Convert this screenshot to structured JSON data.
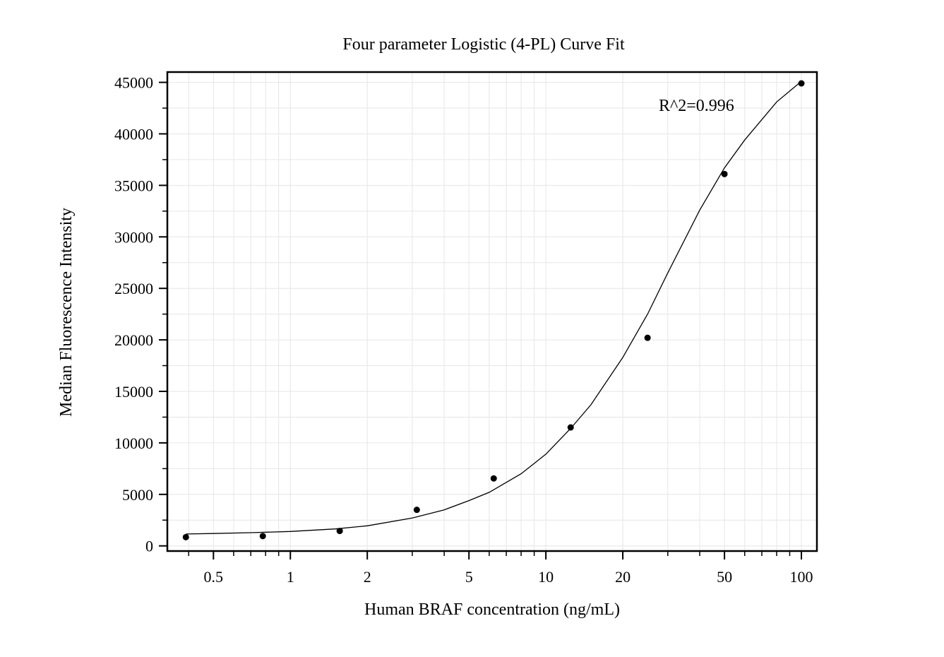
{
  "chart_data": {
    "type": "scatter",
    "title": "Four parameter Logistic (4-PL) Curve Fit",
    "xlabel": "Human BRAF concentration (ng/mL)",
    "ylabel": "Median Fluorescence Intensity",
    "xscale": "log",
    "xlim": [
      0.33,
      115
    ],
    "ylim": [
      -500,
      46000
    ],
    "x_ticks": [
      0.5,
      1,
      2,
      5,
      10,
      20,
      50,
      100
    ],
    "x_tick_labels": [
      "0.5",
      "1",
      "2",
      "5",
      "10",
      "20",
      "50",
      "100"
    ],
    "y_ticks": [
      0,
      5000,
      10000,
      15000,
      20000,
      25000,
      30000,
      35000,
      40000,
      45000
    ],
    "y_tick_labels": [
      "0",
      "5000",
      "10000",
      "15000",
      "20000",
      "25000",
      "30000",
      "35000",
      "40000",
      "45000"
    ],
    "grid": true,
    "series": [
      {
        "type": "scatter",
        "x": [
          0.39,
          0.78,
          1.56,
          3.125,
          6.25,
          12.5,
          25,
          50,
          100
        ],
        "y": [
          850,
          950,
          1450,
          3500,
          6550,
          11500,
          20200,
          36100,
          44900
        ],
        "color": "#000000"
      },
      {
        "type": "line",
        "x": [
          0.39,
          0.5,
          0.7,
          1,
          1.5,
          2,
          3,
          4,
          5,
          6,
          8,
          10,
          12.5,
          15,
          20,
          25,
          30,
          40,
          50,
          60,
          80,
          100
        ],
        "y": [
          1150,
          1200,
          1280,
          1400,
          1650,
          1950,
          2700,
          3500,
          4400,
          5200,
          7000,
          8900,
          11400,
          13700,
          18300,
          22500,
          26500,
          32600,
          36700,
          39400,
          43100,
          45100
        ],
        "color": "#000000"
      }
    ],
    "annotations": [
      {
        "text": "R^2=0.996",
        "position": "top-right"
      }
    ]
  }
}
